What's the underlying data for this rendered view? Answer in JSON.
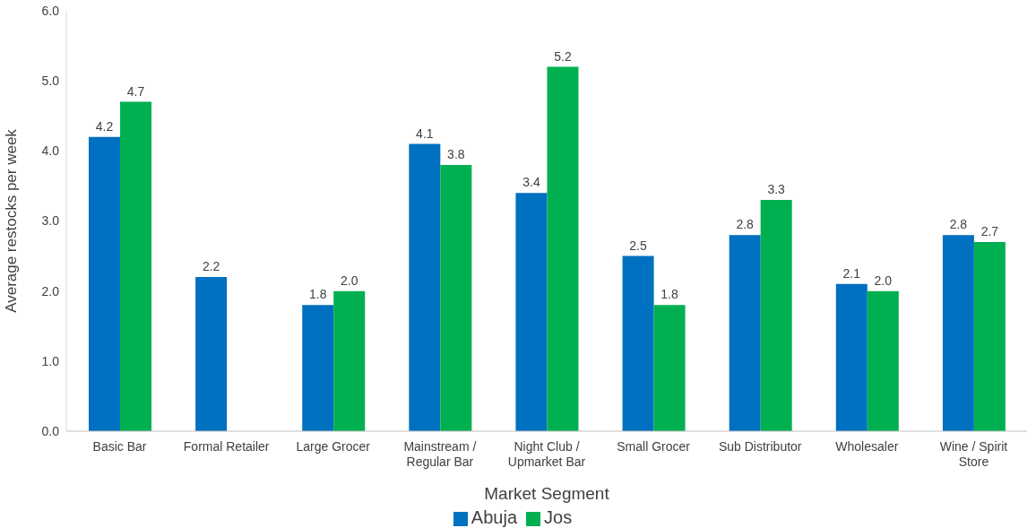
{
  "chart_data": {
    "type": "bar",
    "xlabel": "Market Segment",
    "ylabel": "Average restocks per week",
    "categories": [
      "Basic Bar",
      "Formal Retailer",
      "Large Grocer",
      "Mainstream / Regular Bar",
      "Night Club / Upmarket Bar",
      "Small Grocer",
      "Sub Distributor",
      "Wholesaler",
      "Wine / Spirit Store"
    ],
    "series": [
      {
        "name": "Abuja",
        "color": "#0070c0",
        "values": [
          4.2,
          2.2,
          1.8,
          4.1,
          3.4,
          2.5,
          2.8,
          2.1,
          2.8
        ],
        "value_labels": [
          "4.2",
          "2.2",
          "1.8",
          "4.1",
          "3.4",
          "2.5",
          "2.8",
          "2.1",
          "2.8"
        ]
      },
      {
        "name": "Jos",
        "color": "#00b050",
        "values": [
          4.7,
          null,
          2.0,
          3.8,
          5.2,
          1.8,
          3.3,
          2.0,
          2.7
        ],
        "value_labels": [
          "4.7",
          null,
          "2.0",
          "3.8",
          "5.2",
          "1.8",
          "3.3",
          "2.0",
          "2.7"
        ]
      }
    ],
    "ylim": [
      0,
      6
    ],
    "yticks": [
      {
        "value": 0,
        "label": "0.0"
      },
      {
        "value": 1,
        "label": "1.0"
      },
      {
        "value": 2,
        "label": "2.0"
      },
      {
        "value": 3,
        "label": "3.0"
      },
      {
        "value": 4,
        "label": "4.0"
      },
      {
        "value": 5,
        "label": "5.0"
      },
      {
        "value": 6,
        "label": "6.0"
      }
    ],
    "grid": false,
    "legend": "bottom"
  }
}
